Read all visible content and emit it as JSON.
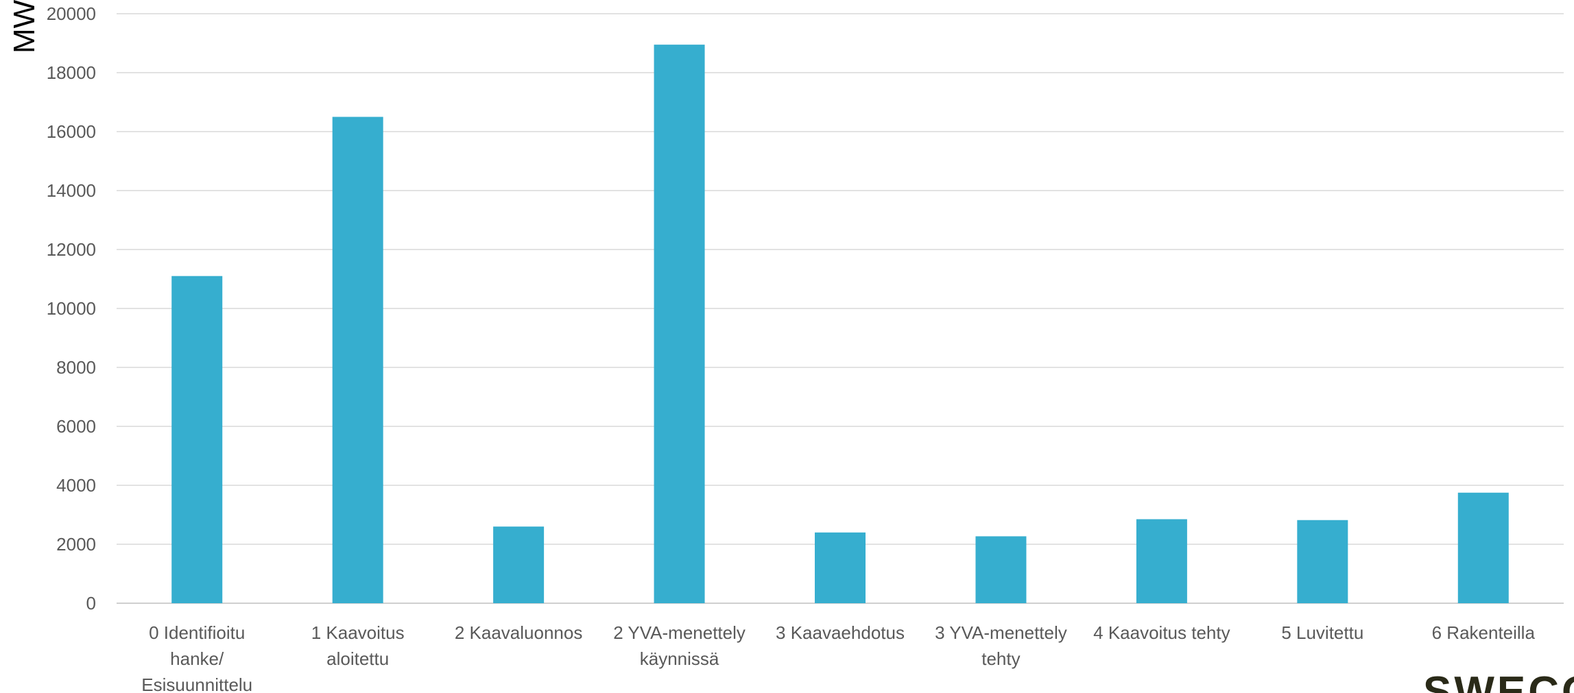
{
  "logo": {
    "text": "SWECO"
  },
  "chart_data": {
    "type": "bar",
    "title": "",
    "xlabel": "",
    "ylabel": "MW",
    "ylim": [
      0,
      20000
    ],
    "yticks": [
      0,
      2000,
      4000,
      6000,
      8000,
      10000,
      12000,
      14000,
      16000,
      18000,
      20000
    ],
    "grid": true,
    "bar_color": "#36aecf",
    "categories": [
      [
        "0 Identifioitu",
        "hanke/",
        "Esisuunnittelu"
      ],
      [
        "1 Kaavoitus",
        "aloitettu"
      ],
      [
        "2 Kaavaluonnos"
      ],
      [
        "2 YVA-menettely",
        "käynnissä"
      ],
      [
        "3 Kaavaehdotus"
      ],
      [
        "3 YVA-menettely",
        "tehty"
      ],
      [
        "4 Kaavoitus tehty"
      ],
      [
        "5 Luvitettu"
      ],
      [
        "6 Rakenteilla"
      ]
    ],
    "values": [
      11100,
      16500,
      2600,
      18950,
      2400,
      2270,
      2850,
      2820,
      3750
    ]
  }
}
